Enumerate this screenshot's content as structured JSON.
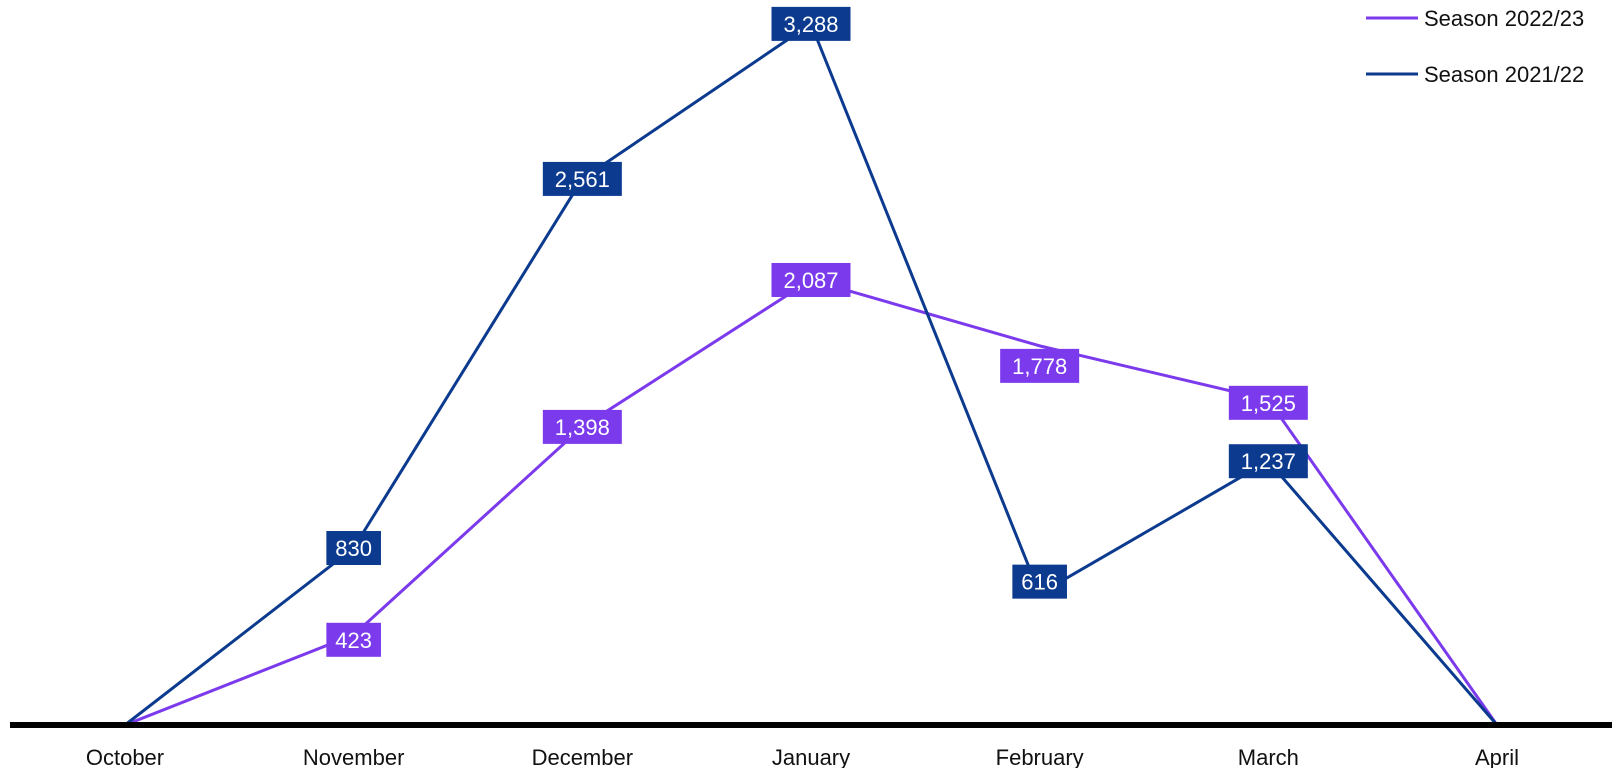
{
  "chart_data": {
    "type": "line",
    "categories": [
      "October",
      "November",
      "December",
      "January",
      "February",
      "March",
      "April"
    ],
    "series": [
      {
        "name": "Season 2022/23",
        "color": "#7c3aed",
        "values": [
          0,
          423,
          1398,
          2087,
          1778,
          1525,
          0
        ],
        "labels": [
          "",
          "423",
          "1,398",
          "2,087",
          "1,778",
          "1,525",
          ""
        ]
      },
      {
        "name": "Season 2021/22",
        "color": "#0b3a8f",
        "values": [
          0,
          830,
          2561,
          3288,
          616,
          1237,
          0
        ],
        "labels": [
          "",
          "830",
          "2,561",
          "3,288",
          "616",
          "1,237",
          ""
        ]
      }
    ],
    "ylim": [
      0,
      3400
    ],
    "grid": false,
    "legend": "top-right",
    "title": "",
    "xlabel": "",
    "ylabel": ""
  }
}
